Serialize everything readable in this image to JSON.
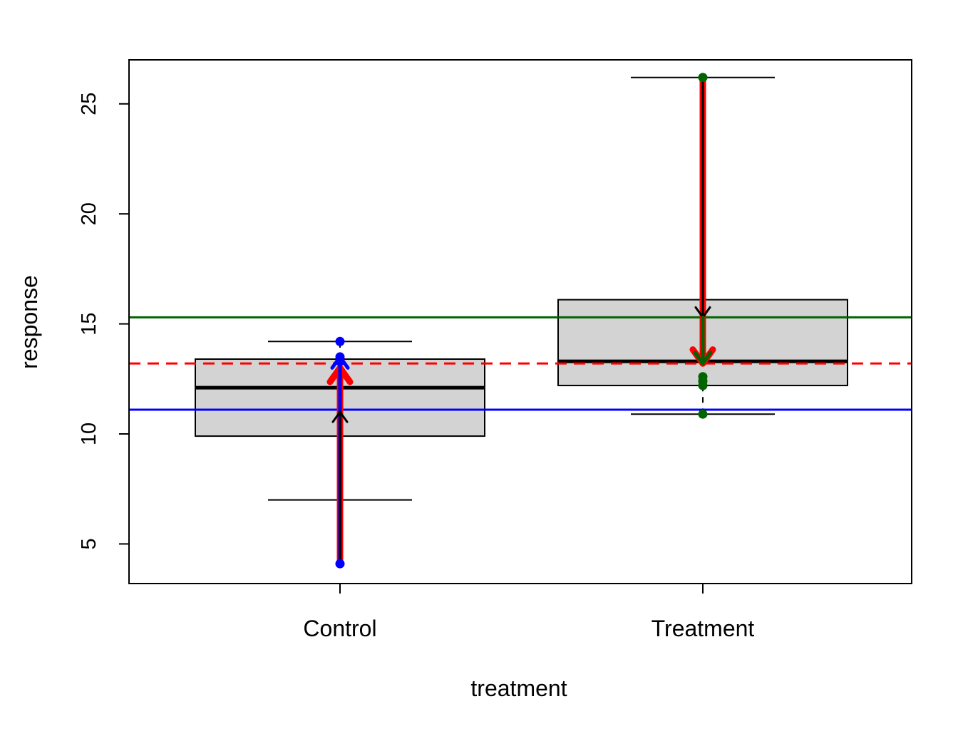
{
  "chart_data": {
    "type": "box",
    "xlabel": "treatment",
    "ylabel": "response",
    "categories": [
      "Control",
      "Treatment"
    ],
    "ylim": [
      3.2,
      27.0
    ],
    "yticks": [
      5,
      10,
      15,
      20,
      25
    ],
    "ytick_labels": [
      "5",
      "10",
      "15",
      "20",
      "25"
    ],
    "boxes": [
      {
        "category": "Control",
        "whisker_low": 7.0,
        "q1": 9.9,
        "median": 12.1,
        "q3": 13.4,
        "whisker_high": 14.2,
        "fill": "#d3d3d3"
      },
      {
        "category": "Treatment",
        "whisker_low": 10.9,
        "q1": 12.2,
        "median": 13.3,
        "q3": 16.1,
        "whisker_high": 26.2,
        "fill": "#d3d3d3"
      }
    ],
    "points": [
      {
        "category": "Control",
        "values": [
          4.1,
          13.3,
          13.5,
          14.2
        ],
        "color": "#0000ff"
      },
      {
        "category": "Treatment",
        "values": [
          10.9,
          12.2,
          12.4,
          12.6,
          26.2
        ],
        "color": "#006400"
      }
    ],
    "hlines": [
      {
        "y": 15.3,
        "color": "#006400",
        "style": "solid"
      },
      {
        "y": 13.2,
        "color": "#ff0000",
        "style": "dashed"
      },
      {
        "y": 11.1,
        "color": "#0000ff",
        "style": "solid"
      }
    ],
    "arrows": [
      {
        "category": "Control",
        "from": 4.1,
        "to": 13.0,
        "color": "#ff0000",
        "width": "thick"
      },
      {
        "category": "Control",
        "from": 4.1,
        "to": 13.5,
        "color": "#0000ff",
        "width": "medium"
      },
      {
        "category": "Control",
        "from": 4.1,
        "to": 11.0,
        "color": "#000000",
        "width": "thin"
      },
      {
        "category": "Treatment",
        "from": 26.2,
        "to": 13.2,
        "color": "#ff0000",
        "width": "thick"
      },
      {
        "category": "Treatment",
        "from": 26.2,
        "to": 15.3,
        "color": "#000000",
        "width": "thin"
      },
      {
        "category": "Treatment",
        "from": 15.3,
        "to": 13.2,
        "color": "#006400",
        "width": "medium"
      }
    ]
  }
}
